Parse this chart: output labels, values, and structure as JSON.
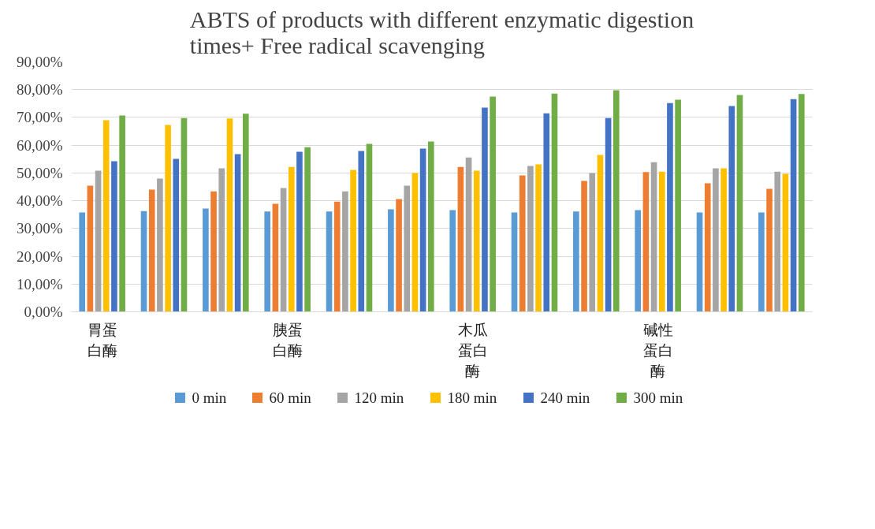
{
  "chart_data": {
    "type": "bar",
    "title": "ABTS of products with different enzymatic digestion\ntimes+ Free radical scavenging",
    "categories": [
      "胃蛋白酶",
      null,
      null,
      "胰蛋白酶",
      null,
      null,
      "木瓜蛋白酶",
      null,
      null,
      "碱性蛋白酶",
      null,
      null
    ],
    "series": [
      {
        "name": "0 min",
        "color": "#5b9bd5",
        "values": [
          35.8,
          36.3,
          37.2,
          36.1,
          36.1,
          36.9,
          36.6,
          35.8,
          36.1,
          36.6,
          35.8,
          35.8
        ]
      },
      {
        "name": "60 min",
        "color": "#ed7d31",
        "values": [
          45.4,
          44.0,
          43.4,
          38.9,
          39.7,
          40.6,
          52.2,
          49.1,
          47.1,
          50.3,
          46.3,
          44.3
        ]
      },
      {
        "name": "120 min",
        "color": "#a5a5a5",
        "values": [
          50.8,
          48.0,
          51.7,
          44.6,
          43.4,
          45.4,
          55.6,
          52.5,
          50.0,
          53.9,
          51.7,
          50.5
        ]
      },
      {
        "name": "180 min",
        "color": "#ffc000",
        "values": [
          69.0,
          67.3,
          69.6,
          52.2,
          51.1,
          50.0,
          50.8,
          53.1,
          56.5,
          50.5,
          51.7,
          49.7
        ]
      },
      {
        "name": "240 min",
        "color": "#4472c4",
        "values": [
          54.2,
          55.1,
          56.8,
          57.6,
          57.9,
          58.8,
          73.5,
          71.5,
          69.8,
          75.2,
          74.1,
          76.6
        ]
      },
      {
        "name": "300 min",
        "color": "#70ad47",
        "values": [
          70.7,
          69.8,
          71.3,
          59.3,
          60.5,
          61.3,
          77.5,
          78.6,
          79.8,
          76.4,
          78.1,
          78.4
        ]
      }
    ],
    "ylim": [
      0,
      90
    ],
    "yticks": [
      {
        "value": 0,
        "label": "0,00%"
      },
      {
        "value": 10,
        "label": "10,00%"
      },
      {
        "value": 20,
        "label": "20,00%"
      },
      {
        "value": 30,
        "label": "30,00%"
      },
      {
        "value": 40,
        "label": "40,00%"
      },
      {
        "value": 50,
        "label": "50,00%"
      },
      {
        "value": 60,
        "label": "60,00%"
      },
      {
        "value": 70,
        "label": "70,00%"
      },
      {
        "value": 80,
        "label": "80,00%"
      },
      {
        "value": 90,
        "label": "90,00%"
      }
    ],
    "grid": "y",
    "legend": "bottom"
  }
}
